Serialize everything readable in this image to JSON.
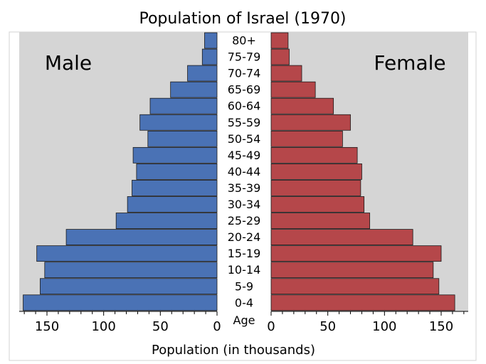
{
  "chart_data": {
    "type": "bar",
    "title": "Population of Israel (1970)",
    "xlabel": "Population (in thousands)",
    "age_label": "Age",
    "categories": [
      "80+",
      "75-79",
      "70-74",
      "65-69",
      "60-64",
      "55-59",
      "50-54",
      "45-49",
      "40-44",
      "35-39",
      "30-34",
      "25-29",
      "20-24",
      "15-19",
      "10-14",
      "5-9",
      "0-4"
    ],
    "series": [
      {
        "name": "Male",
        "side": "left",
        "color": "#4a72b5",
        "values": [
          11,
          13,
          26,
          41,
          59,
          68,
          61,
          74,
          71,
          75,
          79,
          89,
          133,
          159,
          152,
          156,
          171
        ]
      },
      {
        "name": "Female",
        "side": "right",
        "color": "#b5474a",
        "values": [
          15,
          16,
          27,
          39,
          55,
          70,
          63,
          76,
          80,
          79,
          82,
          87,
          125,
          150,
          143,
          148,
          162
        ]
      }
    ],
    "x_ticks": [
      0,
      50,
      100,
      150
    ],
    "x_tick_labels": [
      "0",
      "50",
      "100",
      "150"
    ],
    "xlim": [
      0,
      180
    ],
    "plot_background": "#d5d5d5",
    "grid": false
  }
}
